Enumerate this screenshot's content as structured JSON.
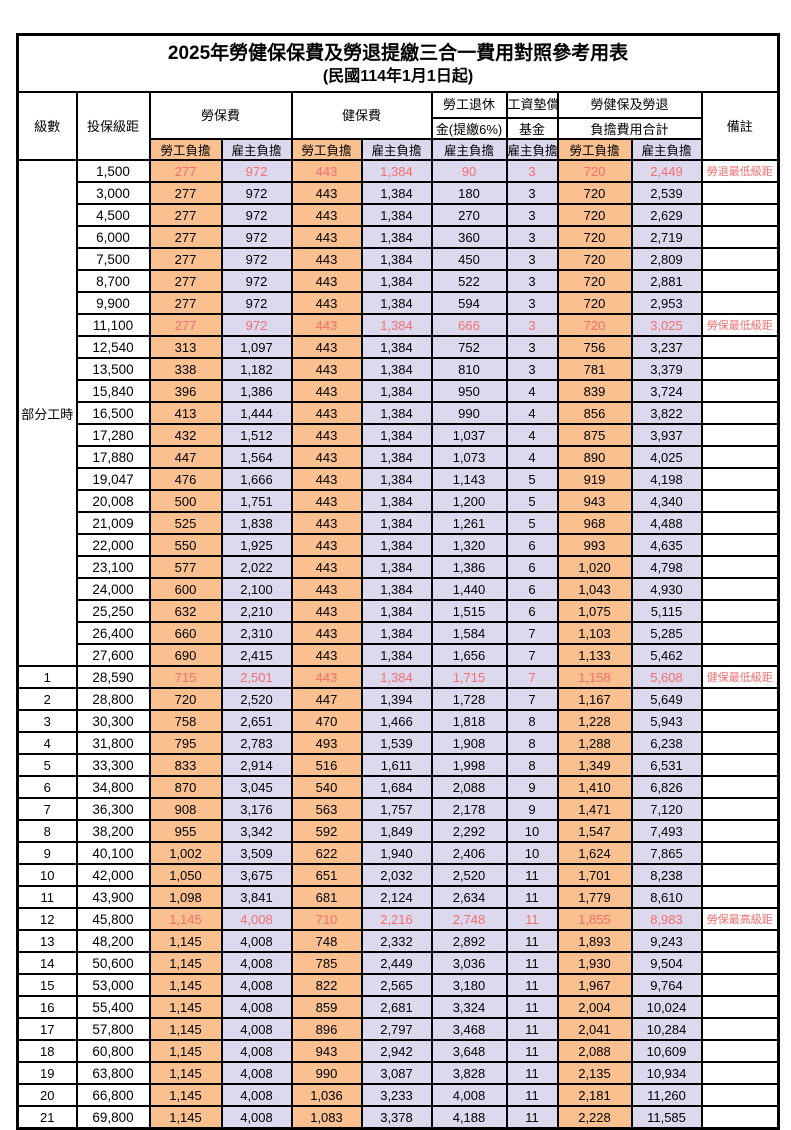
{
  "title": "2025年勞健保保費及勞退提繳三合一費用對照參考用表",
  "subtitle": "(民國114年1月1日起)",
  "header": {
    "level": "級數",
    "bracket": "投保級距",
    "labor_insurance": "勞保費",
    "health_insurance": "健保費",
    "pension_line1": "勞工退休",
    "pension_line2": "金(提繳6%)",
    "wage_fund_line1": "工資墊償",
    "wage_fund_line2": "基金",
    "total_line1": "勞健保及勞退",
    "total_line2": "負擔費用合計",
    "remark": "備註",
    "employee_share": "勞工負擔",
    "employer_share": "雇主負擔"
  },
  "part_time": {
    "label": "部分工時",
    "row_span": 23
  },
  "colors": {
    "employee_fill": "#FAC090",
    "employer_fill": "#DCD9EE",
    "key_text": "#F76E6E",
    "grid": "#000000"
  },
  "value_columns": [
    "labor-insurance-employee",
    "labor-insurance-employer",
    "health-insurance-employee",
    "health-insurance-employer",
    "pension-employer",
    "wage-fund-employer",
    "total-employee",
    "total-employer"
  ],
  "rows": [
    {
      "level": "",
      "bracket": "1,500",
      "values": [
        "277",
        "972",
        "443",
        "1,384",
        "90",
        "3",
        "720",
        "2,449"
      ],
      "remark": "勞退最低級距",
      "key": true
    },
    {
      "level": "",
      "bracket": "3,000",
      "values": [
        "277",
        "972",
        "443",
        "1,384",
        "180",
        "3",
        "720",
        "2,539"
      ],
      "remark": "",
      "key": false
    },
    {
      "level": "",
      "bracket": "4,500",
      "values": [
        "277",
        "972",
        "443",
        "1,384",
        "270",
        "3",
        "720",
        "2,629"
      ],
      "remark": "",
      "key": false
    },
    {
      "level": "",
      "bracket": "6,000",
      "values": [
        "277",
        "972",
        "443",
        "1,384",
        "360",
        "3",
        "720",
        "2,719"
      ],
      "remark": "",
      "key": false
    },
    {
      "level": "",
      "bracket": "7,500",
      "values": [
        "277",
        "972",
        "443",
        "1,384",
        "450",
        "3",
        "720",
        "2,809"
      ],
      "remark": "",
      "key": false
    },
    {
      "level": "",
      "bracket": "8,700",
      "values": [
        "277",
        "972",
        "443",
        "1,384",
        "522",
        "3",
        "720",
        "2,881"
      ],
      "remark": "",
      "key": false
    },
    {
      "level": "",
      "bracket": "9,900",
      "values": [
        "277",
        "972",
        "443",
        "1,384",
        "594",
        "3",
        "720",
        "2,953"
      ],
      "remark": "",
      "key": false
    },
    {
      "level": "",
      "bracket": "11,100",
      "values": [
        "277",
        "972",
        "443",
        "1,384",
        "666",
        "3",
        "720",
        "3,025"
      ],
      "remark": "勞保最低級距",
      "key": true
    },
    {
      "level": "",
      "bracket": "12,540",
      "values": [
        "313",
        "1,097",
        "443",
        "1,384",
        "752",
        "3",
        "756",
        "3,237"
      ],
      "remark": "",
      "key": false
    },
    {
      "level": "",
      "bracket": "13,500",
      "values": [
        "338",
        "1,182",
        "443",
        "1,384",
        "810",
        "3",
        "781",
        "3,379"
      ],
      "remark": "",
      "key": false
    },
    {
      "level": "",
      "bracket": "15,840",
      "values": [
        "396",
        "1,386",
        "443",
        "1,384",
        "950",
        "4",
        "839",
        "3,724"
      ],
      "remark": "",
      "key": false
    },
    {
      "level": "",
      "bracket": "16,500",
      "values": [
        "413",
        "1,444",
        "443",
        "1,384",
        "990",
        "4",
        "856",
        "3,822"
      ],
      "remark": "",
      "key": false
    },
    {
      "level": "",
      "bracket": "17,280",
      "values": [
        "432",
        "1,512",
        "443",
        "1,384",
        "1,037",
        "4",
        "875",
        "3,937"
      ],
      "remark": "",
      "key": false
    },
    {
      "level": "",
      "bracket": "17,880",
      "values": [
        "447",
        "1,564",
        "443",
        "1,384",
        "1,073",
        "4",
        "890",
        "4,025"
      ],
      "remark": "",
      "key": false
    },
    {
      "level": "",
      "bracket": "19,047",
      "values": [
        "476",
        "1,666",
        "443",
        "1,384",
        "1,143",
        "5",
        "919",
        "4,198"
      ],
      "remark": "",
      "key": false
    },
    {
      "level": "",
      "bracket": "20,008",
      "values": [
        "500",
        "1,751",
        "443",
        "1,384",
        "1,200",
        "5",
        "943",
        "4,340"
      ],
      "remark": "",
      "key": false
    },
    {
      "level": "",
      "bracket": "21,009",
      "values": [
        "525",
        "1,838",
        "443",
        "1,384",
        "1,261",
        "5",
        "968",
        "4,488"
      ],
      "remark": "",
      "key": false
    },
    {
      "level": "",
      "bracket": "22,000",
      "values": [
        "550",
        "1,925",
        "443",
        "1,384",
        "1,320",
        "6",
        "993",
        "4,635"
      ],
      "remark": "",
      "key": false
    },
    {
      "level": "",
      "bracket": "23,100",
      "values": [
        "577",
        "2,022",
        "443",
        "1,384",
        "1,386",
        "6",
        "1,020",
        "4,798"
      ],
      "remark": "",
      "key": false
    },
    {
      "level": "",
      "bracket": "24,000",
      "values": [
        "600",
        "2,100",
        "443",
        "1,384",
        "1,440",
        "6",
        "1,043",
        "4,930"
      ],
      "remark": "",
      "key": false
    },
    {
      "level": "",
      "bracket": "25,250",
      "values": [
        "632",
        "2,210",
        "443",
        "1,384",
        "1,515",
        "6",
        "1,075",
        "5,115"
      ],
      "remark": "",
      "key": false
    },
    {
      "level": "",
      "bracket": "26,400",
      "values": [
        "660",
        "2,310",
        "443",
        "1,384",
        "1,584",
        "7",
        "1,103",
        "5,285"
      ],
      "remark": "",
      "key": false
    },
    {
      "level": "",
      "bracket": "27,600",
      "values": [
        "690",
        "2,415",
        "443",
        "1,384",
        "1,656",
        "7",
        "1,133",
        "5,462"
      ],
      "remark": "",
      "key": false
    },
    {
      "level": "1",
      "bracket": "28,590",
      "values": [
        "715",
        "2,501",
        "443",
        "1,384",
        "1,715",
        "7",
        "1,158",
        "5,608"
      ],
      "remark": "健保最低級距",
      "key": true
    },
    {
      "level": "2",
      "bracket": "28,800",
      "values": [
        "720",
        "2,520",
        "447",
        "1,394",
        "1,728",
        "7",
        "1,167",
        "5,649"
      ],
      "remark": "",
      "key": false
    },
    {
      "level": "3",
      "bracket": "30,300",
      "values": [
        "758",
        "2,651",
        "470",
        "1,466",
        "1,818",
        "8",
        "1,228",
        "5,943"
      ],
      "remark": "",
      "key": false
    },
    {
      "level": "4",
      "bracket": "31,800",
      "values": [
        "795",
        "2,783",
        "493",
        "1,539",
        "1,908",
        "8",
        "1,288",
        "6,238"
      ],
      "remark": "",
      "key": false
    },
    {
      "level": "5",
      "bracket": "33,300",
      "values": [
        "833",
        "2,914",
        "516",
        "1,611",
        "1,998",
        "8",
        "1,349",
        "6,531"
      ],
      "remark": "",
      "key": false
    },
    {
      "level": "6",
      "bracket": "34,800",
      "values": [
        "870",
        "3,045",
        "540",
        "1,684",
        "2,088",
        "9",
        "1,410",
        "6,826"
      ],
      "remark": "",
      "key": false
    },
    {
      "level": "7",
      "bracket": "36,300",
      "values": [
        "908",
        "3,176",
        "563",
        "1,757",
        "2,178",
        "9",
        "1,471",
        "7,120"
      ],
      "remark": "",
      "key": false
    },
    {
      "level": "8",
      "bracket": "38,200",
      "values": [
        "955",
        "3,342",
        "592",
        "1,849",
        "2,292",
        "10",
        "1,547",
        "7,493"
      ],
      "remark": "",
      "key": false
    },
    {
      "level": "9",
      "bracket": "40,100",
      "values": [
        "1,002",
        "3,509",
        "622",
        "1,940",
        "2,406",
        "10",
        "1,624",
        "7,865"
      ],
      "remark": "",
      "key": false
    },
    {
      "level": "10",
      "bracket": "42,000",
      "values": [
        "1,050",
        "3,675",
        "651",
        "2,032",
        "2,520",
        "11",
        "1,701",
        "8,238"
      ],
      "remark": "",
      "key": false
    },
    {
      "level": "11",
      "bracket": "43,900",
      "values": [
        "1,098",
        "3,841",
        "681",
        "2,124",
        "2,634",
        "11",
        "1,779",
        "8,610"
      ],
      "remark": "",
      "key": false
    },
    {
      "level": "12",
      "bracket": "45,800",
      "values": [
        "1,145",
        "4,008",
        "710",
        "2,216",
        "2,748",
        "11",
        "1,855",
        "8,983"
      ],
      "remark": "勞保最高級距",
      "key": true
    },
    {
      "level": "13",
      "bracket": "48,200",
      "values": [
        "1,145",
        "4,008",
        "748",
        "2,332",
        "2,892",
        "11",
        "1,893",
        "9,243"
      ],
      "remark": "",
      "key": false
    },
    {
      "level": "14",
      "bracket": "50,600",
      "values": [
        "1,145",
        "4,008",
        "785",
        "2,449",
        "3,036",
        "11",
        "1,930",
        "9,504"
      ],
      "remark": "",
      "key": false
    },
    {
      "level": "15",
      "bracket": "53,000",
      "values": [
        "1,145",
        "4,008",
        "822",
        "2,565",
        "3,180",
        "11",
        "1,967",
        "9,764"
      ],
      "remark": "",
      "key": false
    },
    {
      "level": "16",
      "bracket": "55,400",
      "values": [
        "1,145",
        "4,008",
        "859",
        "2,681",
        "3,324",
        "11",
        "2,004",
        "10,024"
      ],
      "remark": "",
      "key": false
    },
    {
      "level": "17",
      "bracket": "57,800",
      "values": [
        "1,145",
        "4,008",
        "896",
        "2,797",
        "3,468",
        "11",
        "2,041",
        "10,284"
      ],
      "remark": "",
      "key": false
    },
    {
      "level": "18",
      "bracket": "60,800",
      "values": [
        "1,145",
        "4,008",
        "943",
        "2,942",
        "3,648",
        "11",
        "2,088",
        "10,609"
      ],
      "remark": "",
      "key": false
    },
    {
      "level": "19",
      "bracket": "63,800",
      "values": [
        "1,145",
        "4,008",
        "990",
        "3,087",
        "3,828",
        "11",
        "2,135",
        "10,934"
      ],
      "remark": "",
      "key": false
    },
    {
      "level": "20",
      "bracket": "66,800",
      "values": [
        "1,145",
        "4,008",
        "1,036",
        "3,233",
        "4,008",
        "11",
        "2,181",
        "11,260"
      ],
      "remark": "",
      "key": false
    },
    {
      "level": "21",
      "bracket": "69,800",
      "values": [
        "1,145",
        "4,008",
        "1,083",
        "3,378",
        "4,188",
        "11",
        "2,228",
        "11,585"
      ],
      "remark": "",
      "key": false
    }
  ]
}
